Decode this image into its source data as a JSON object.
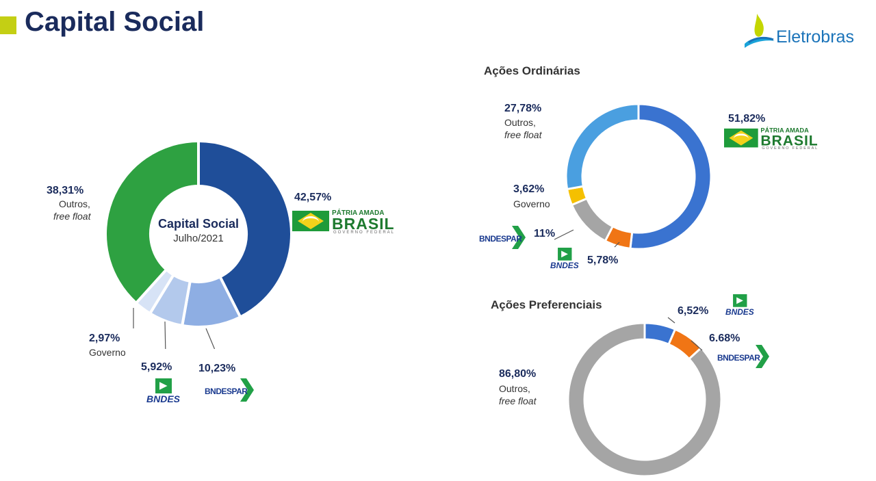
{
  "page": {
    "title": "Capital Social",
    "logo_text": "Eletrobras"
  },
  "brands": {
    "brasil_line1": "PÁTRIA AMADA",
    "brasil_line2": "BRASIL",
    "brasil_line3": "GOVERNO FEDERAL",
    "bndes": "BNDES",
    "bndespar": "BNDESPAR"
  },
  "colors": {
    "title_bar": "#c4cf14",
    "title_text": "#1a2b5c",
    "logo": "#1a73b9"
  },
  "chart_data": [
    {
      "type": "pie",
      "center_title": "Capital Social",
      "center_subtitle": "Julho/2021",
      "slices": [
        {
          "pct": "42,57%",
          "value": 42.57,
          "label": "",
          "color": "#1f4e99"
        },
        {
          "pct": "10,23%",
          "value": 10.23,
          "label": "",
          "color": "#8eaee3"
        },
        {
          "pct": "5,92%",
          "value": 5.92,
          "label": "",
          "color": "#b3c9ec"
        },
        {
          "pct": "2,97%",
          "value": 2.97,
          "label": "Governo",
          "color": "#d7e3f6"
        },
        {
          "pct": "38,31%",
          "value": 38.31,
          "label": "Outros,",
          "label2": "free float",
          "color": "#2ea141"
        }
      ]
    },
    {
      "type": "pie",
      "title": "Ações Ordinárias",
      "slices": [
        {
          "pct": "51,82%",
          "value": 51.82,
          "label": "",
          "color": "#3a73d0"
        },
        {
          "pct": "5,78%",
          "value": 5.78,
          "label": "",
          "color": "#f07515"
        },
        {
          "pct": "11%",
          "value": 11.0,
          "label": "",
          "color": "#a5a5a5"
        },
        {
          "pct": "3,62%",
          "value": 3.62,
          "label": "Governo",
          "color": "#f5c000"
        },
        {
          "pct": "27,78%",
          "value": 27.78,
          "label": "Outros,",
          "label2": "free float",
          "color": "#4a9fe0"
        }
      ]
    },
    {
      "type": "pie",
      "title": "Ações Preferenciais",
      "slices": [
        {
          "pct": "6,52%",
          "value": 6.52,
          "label": "",
          "color": "#3a73d0"
        },
        {
          "pct": "6.68%",
          "value": 6.68,
          "label": "",
          "color": "#f07515"
        },
        {
          "pct": "86,80%",
          "value": 86.8,
          "label": "Outros,",
          "label2": "free float",
          "color": "#a5a5a5"
        }
      ]
    }
  ]
}
